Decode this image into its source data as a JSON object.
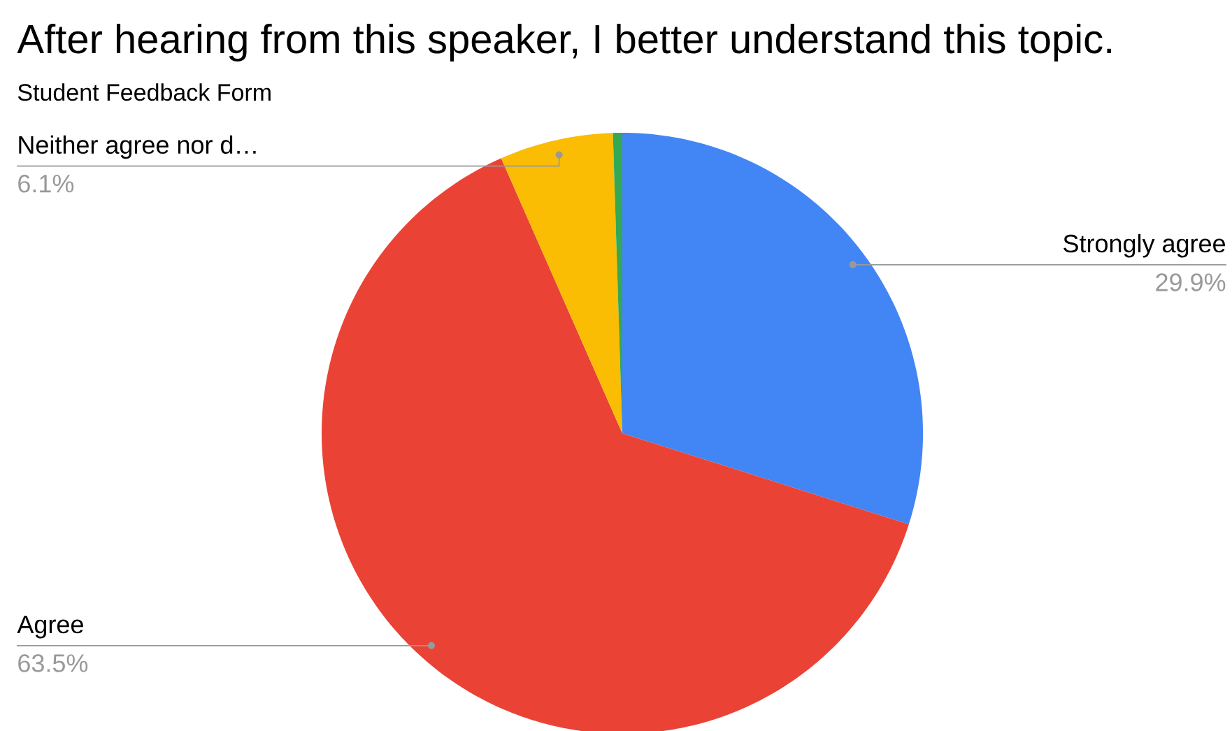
{
  "chart_data": {
    "type": "pie",
    "title": "After hearing from this speaker, I better understand this topic.",
    "subtitle": "Student Feedback Form",
    "categories": [
      "Strongly agree",
      "Agree",
      "Neither agree nor d…",
      null
    ],
    "values": [
      29.9,
      63.5,
      6.1,
      0.5
    ],
    "colors": [
      "#4285f4",
      "#ea4335",
      "#fbbc04",
      "#34a853"
    ],
    "value_labels": [
      "29.9%",
      "63.5%",
      "6.1%",
      null
    ]
  }
}
